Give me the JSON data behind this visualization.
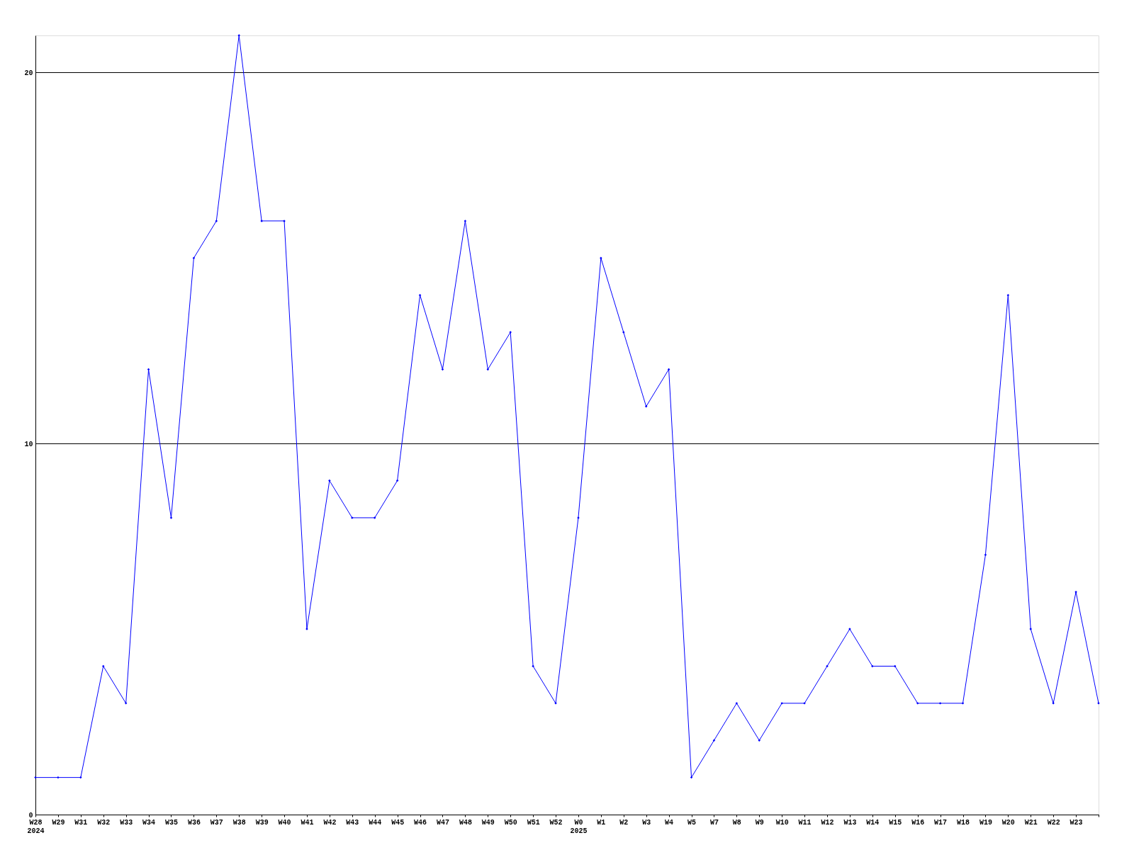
{
  "chart_data": {
    "type": "line",
    "categories": [
      "W28\n2024",
      "W29",
      "W31",
      "W32",
      "W33",
      "W34",
      "W35",
      "W36",
      "W37",
      "W38",
      "W39",
      "W40",
      "W41",
      "W42",
      "W43",
      "W44",
      "W45",
      "W46",
      "W47",
      "W48",
      "W49",
      "W50",
      "W51",
      "W52",
      "W0\n2025",
      "W1",
      "W2",
      "W3",
      "W4",
      "W5",
      "W7",
      "W8",
      "W9",
      "W10",
      "W11",
      "W12",
      "W13",
      "W14",
      "W15",
      "W16",
      "W17",
      "W18",
      "W19",
      "W20",
      "W21",
      "W22",
      "W23",
      null
    ],
    "series": [
      {
        "color": "#0000ff",
        "values": [
          1,
          1,
          1,
          4,
          3,
          12,
          8,
          15,
          16,
          21,
          16,
          16,
          5,
          9,
          8,
          8,
          9,
          14,
          12,
          16,
          12,
          13,
          4,
          3,
          8,
          15,
          13,
          11,
          12,
          1,
          2,
          3,
          2,
          3,
          3,
          4,
          5,
          4,
          4,
          3,
          3,
          3,
          7,
          14,
          5,
          3,
          6,
          3
        ]
      }
    ],
    "ylim": [
      0,
      21
    ],
    "yticks": [
      0,
      10,
      20
    ],
    "grid": "y",
    "marker": "diamond",
    "line_style": "solid"
  }
}
